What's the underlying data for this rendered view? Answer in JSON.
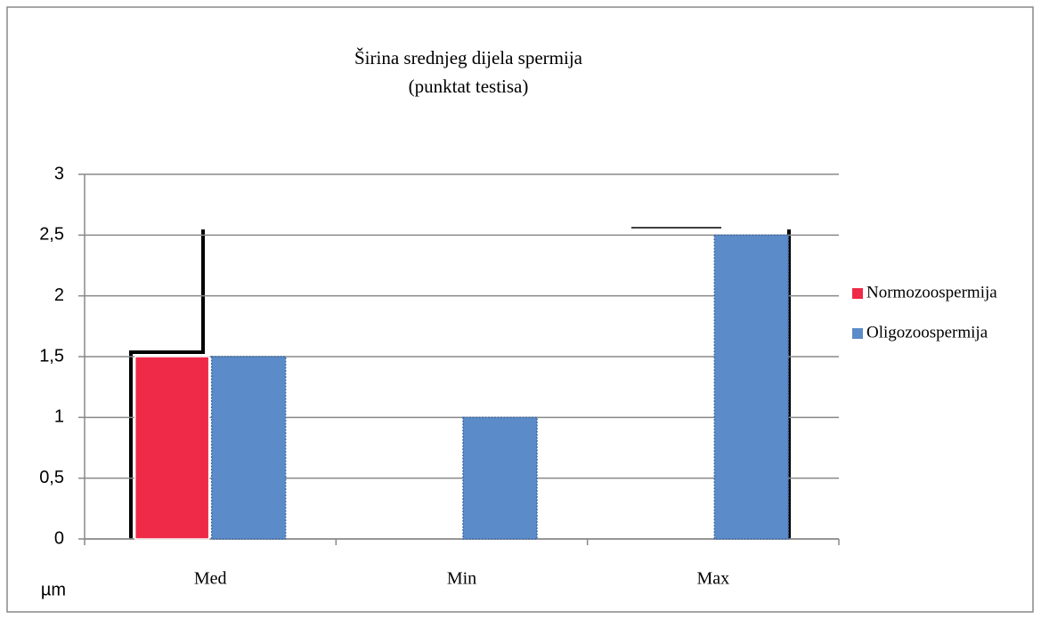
{
  "chart_data": {
    "type": "bar",
    "title": "Širina srednjeg dijela spermija",
    "subtitle": "(punktat testisa)",
    "y_label": "µm",
    "categories": [
      "Med",
      "Min",
      "Max"
    ],
    "series": [
      {
        "name": "Normozoospermija",
        "color": "#ee2a48",
        "values": [
          1.5,
          0,
          0
        ]
      },
      {
        "name": "Oligozoospermija",
        "color": "#5b8bc9",
        "values": [
          1.5,
          1,
          2.5
        ]
      }
    ],
    "ylim": [
      0,
      3
    ],
    "yticks": [
      0,
      {
        "value": 0.5,
        "label": "0,5"
      },
      1,
      {
        "value": 1.5,
        "label": "1,5"
      },
      2,
      {
        "value": 2.5,
        "label": "2,5"
      },
      3
    ],
    "grid": true,
    "legend": "right"
  }
}
